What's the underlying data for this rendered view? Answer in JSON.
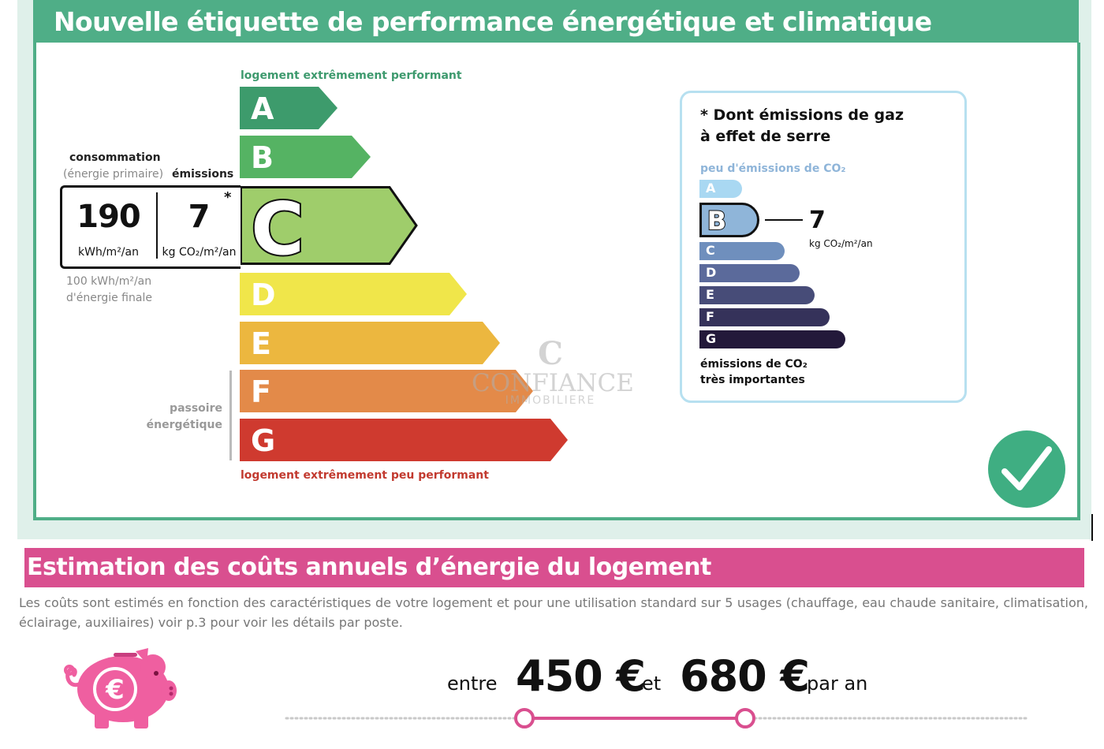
{
  "dpe": {
    "title": "Nouvelle étiquette de performance énergétique et climatique",
    "label_top": "logement extrêmement performant",
    "label_bottom": "logement extrêmement peu performant",
    "classes": [
      "A",
      "B",
      "C",
      "D",
      "E",
      "F",
      "G"
    ],
    "current_class": "C",
    "colors": {
      "A": "#3d9b6c",
      "B": "#55b363",
      "C": "#9fcd6b",
      "D": "#f0e64a",
      "E": "#ecb73f",
      "F": "#e38a49",
      "G": "#cf3a2f"
    },
    "consumption_heading": "consommation",
    "consumption_subheading": "(énergie primaire)",
    "emissions_heading": "émissions",
    "consumption_value": "190",
    "consumption_unit": "kWh/m²/an",
    "emissions_value": "7",
    "emissions_unit": "kg CO₂/m²/an",
    "emissions_footnote_marker": "*",
    "final_energy_line1": "100 kWh/m²/an",
    "final_energy_line2": "d'énergie finale",
    "passoire_line1": "passoire",
    "passoire_line2": "énergétique"
  },
  "watermark": {
    "logo": "C",
    "name": "CONFIANCE",
    "subtitle": "IMMOBILIERE"
  },
  "ges": {
    "title_line1": "* Dont émissions de gaz",
    "title_line2": "à effet de serre",
    "low_label": "peu d'émissions de CO₂",
    "classes": [
      "A",
      "B",
      "C",
      "D",
      "E",
      "F",
      "G"
    ],
    "current_class": "B",
    "colors": {
      "A": "#a9d8f2",
      "B": "#8fb5d9",
      "C": "#6f8fbd",
      "D": "#5b6a9b",
      "E": "#474c78",
      "F": "#35325a",
      "G": "#23193a"
    },
    "value": "7",
    "unit": "kg CO₂/m²/an",
    "high_label_line1": "émissions de CO₂",
    "high_label_line2": "très importantes"
  },
  "costs": {
    "title": "Estimation des coûts annuels d’énergie du logement",
    "description": "Les coûts sont estimés en fonction des caractéristiques de votre logement et pour une utilisation standard sur 5 usages (chauffage, eau chaude sanitaire, climatisation, éclairage, auxiliaires) voir p.3 pour voir les détails par poste.",
    "word_between": "entre",
    "min_amount": "450 €",
    "word_and": "et",
    "max_amount": "680 €",
    "word_per_year": "par an",
    "piggy_symbol": "€",
    "icons": [
      "piggy-bank-icon",
      "check-circle-icon"
    ],
    "accent_color": "#d94f8f"
  }
}
